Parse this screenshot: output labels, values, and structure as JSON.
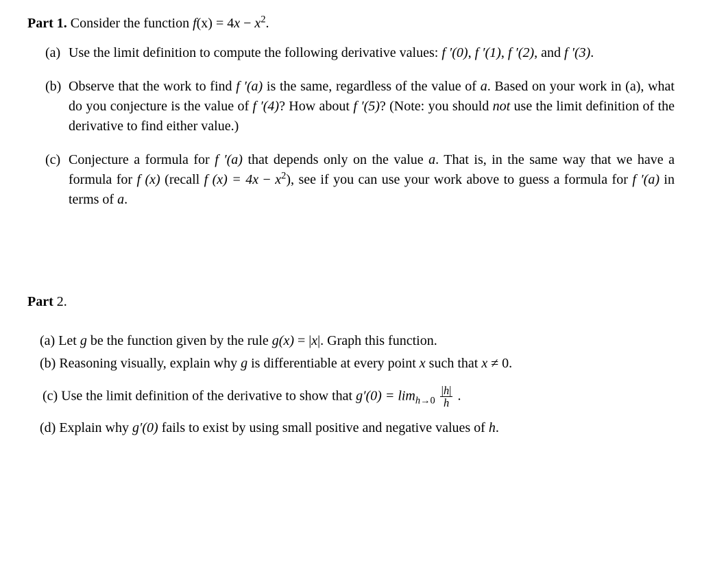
{
  "part1": {
    "header_bold": "Part 1.",
    "header_rest_pre": " Consider the function ",
    "header_func": "f",
    "header_paren_x": "(x) = 4",
    "header_x": "x",
    "header_minus": " − ",
    "header_x2_base": "x",
    "header_x2_exp": "2",
    "header_period": ".",
    "items": {
      "a": {
        "label": "(a)",
        "t1": "Use the limit definition to compute the following derivative values:  ",
        "f0": "f ′(0)",
        "c1": ",  ",
        "f1": "f ′(1)",
        "c2": ", ",
        "f2": "f ′(2)",
        "c3": ", and  ",
        "f3": "f ′(3)",
        "c4": "."
      },
      "b": {
        "label": "(b)",
        "t1": "Observe that the work to find ",
        "fa": "f ′(a)",
        "t2": " is the same, regardless of the value of ",
        "a1": "a",
        "t3": ". Based on your work in (a), what do you conjecture is the value of ",
        "f4": "f ′(4)",
        "t4": "?  How about ",
        "f5": "f ′(5)",
        "t5": "? (Note: you should ",
        "not": "not",
        "t6": " use the limit definition of the derivative to find either value.)"
      },
      "c": {
        "label": "(c)",
        "t1": "Conjecture a formula for ",
        "fa1": "f ′(a)",
        "t2": " that depends only on the value ",
        "a1": "a",
        "t3": ". That is, in the same way that we have a formula for ",
        "fx1": "f (x)",
        "t4": " (recall  ",
        "fx2_f": "f (x) = 4",
        "fx2_x": "x",
        "fx2_minus": " − ",
        "fx2_x2base": "x",
        "fx2_x2exp": "2",
        "t5": "), see if you can use your work above to guess a formula for ",
        "fa2": "f ′(a)",
        "t6": " in terms of ",
        "a2": "a",
        "t7": "."
      }
    }
  },
  "part2": {
    "header_bold": "Part",
    "header_rest": " 2.",
    "a": {
      "label": "(a) ",
      "t1": "Let  ",
      "g": "g",
      "t2": "  be  the  function  given  by  the  rule  ",
      "gx": "g(x)",
      "t3": "  =  |",
      "x": "x",
      "t4": "|.    Graph  this  function."
    },
    "b": {
      "label": "(b)  ",
      "t1": "Reasoning visually, explain why ",
      "g": "g",
      "t2": " is differentiable at every point ",
      "x1": "x",
      "t3": " such that  ",
      "x2": "x",
      "t4": " ≠ 0."
    },
    "c": {
      "label": "(c) ",
      "t1": "Use the limit definition of the derivative to show that ",
      "g0": "g′(0) = lim",
      "sub_h": "h",
      "sub_arrow": "→0",
      "frac_num1": "|",
      "frac_num_h": "h",
      "frac_num2": "|",
      "frac_den": "h",
      "t2": "  ."
    },
    "d": {
      "label": "(d) ",
      "t1": "Explain why ",
      "g0": "g′(0)",
      "t2": " fails to exist by using small positive and negative values of  ",
      "h": "h",
      "t3": "."
    }
  }
}
